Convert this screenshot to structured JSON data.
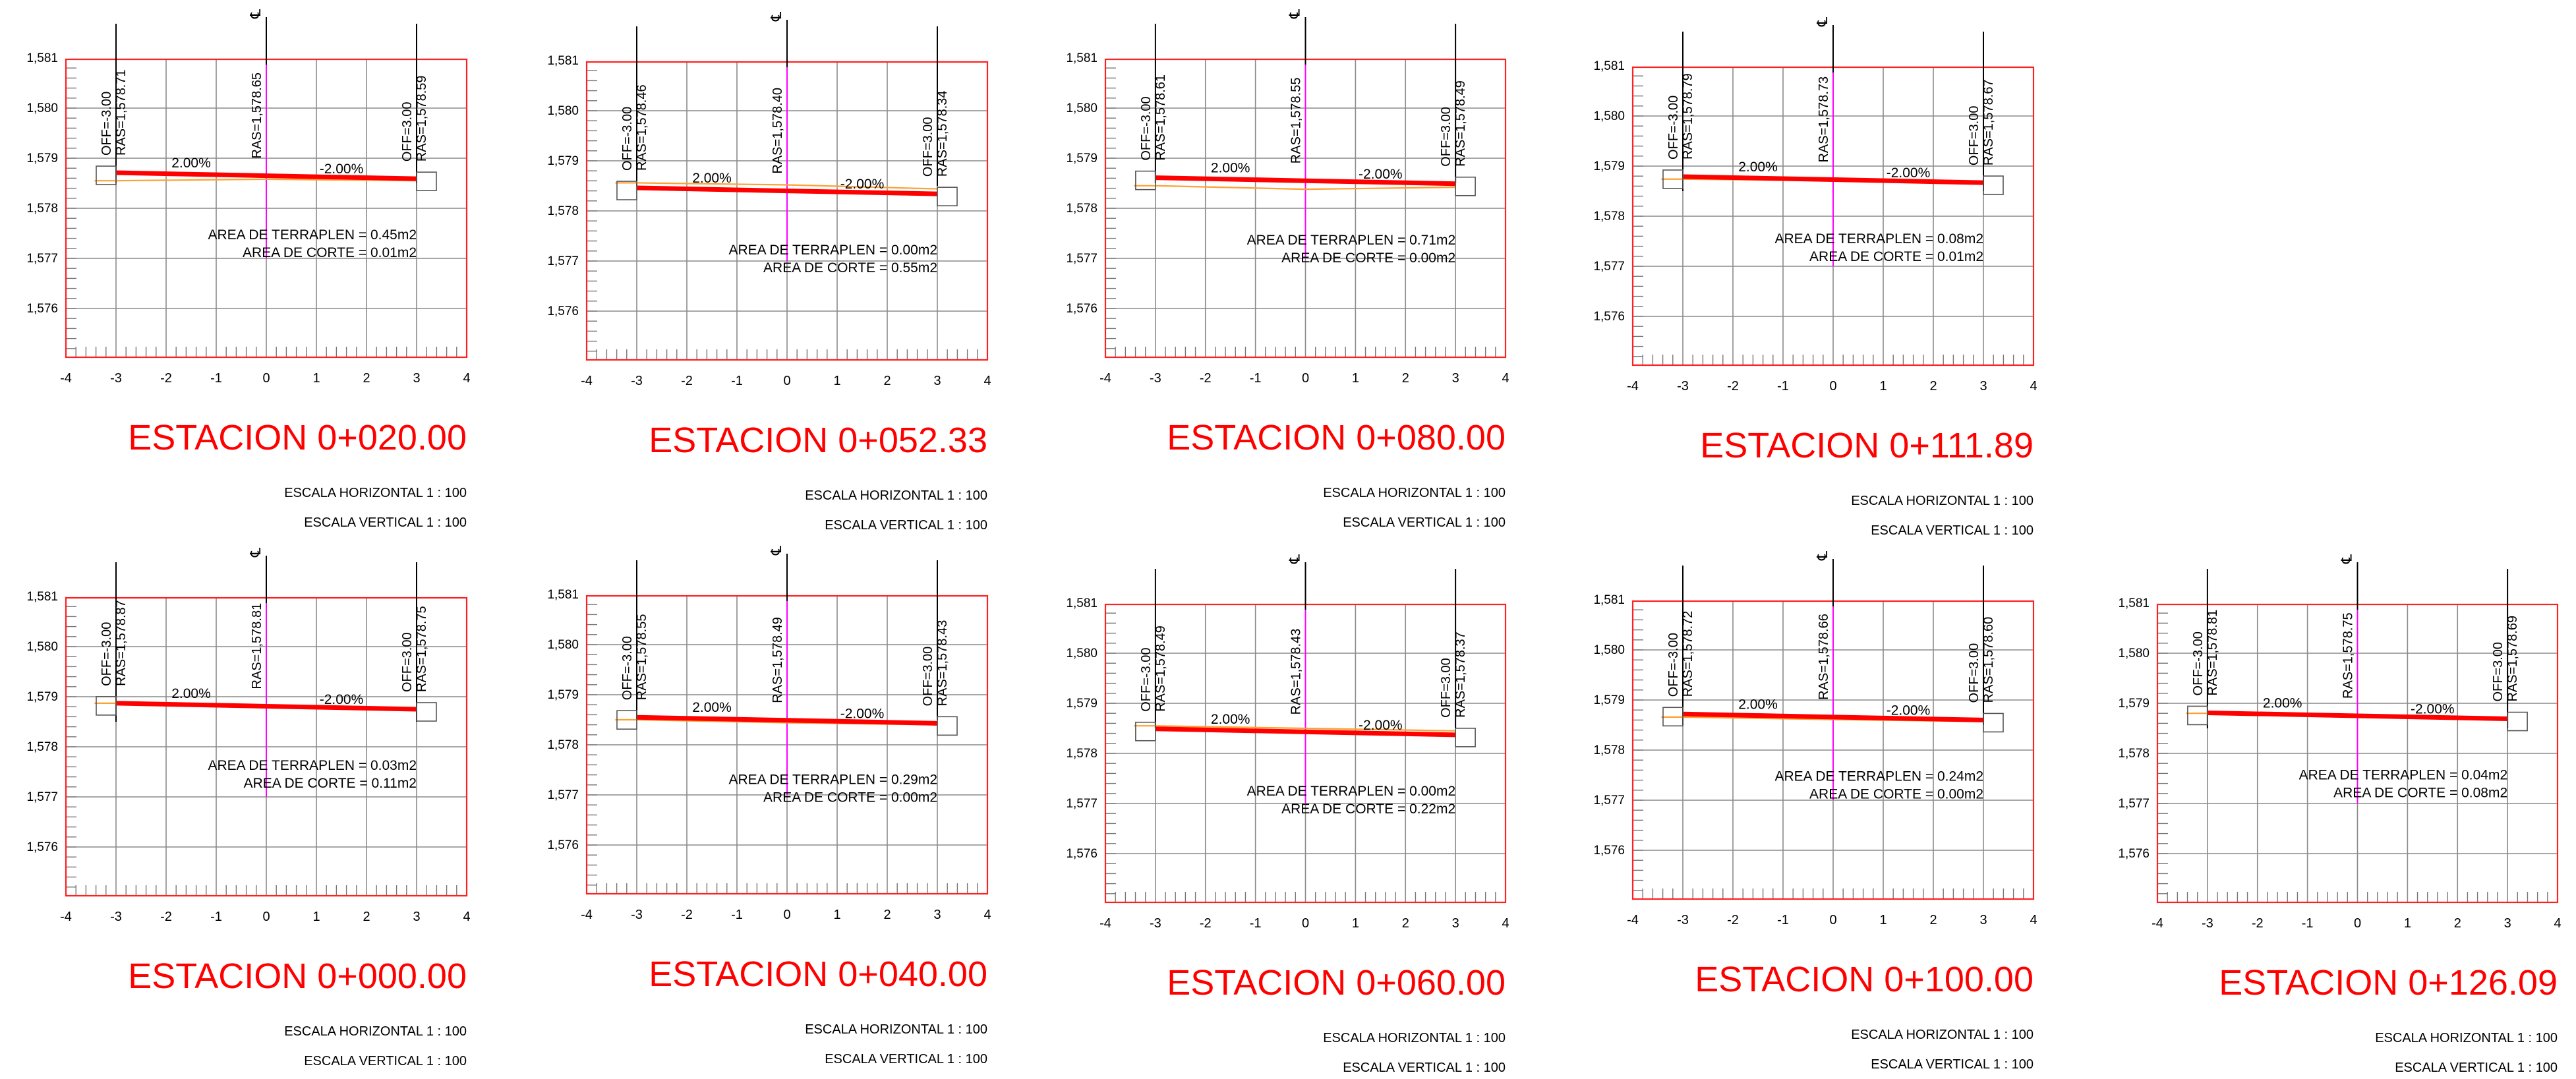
{
  "colors": {
    "frame": "#ff2020",
    "grid": "#8a8a8a",
    "ticks": "#777777",
    "text": "#000000",
    "rasante": "#ff0000",
    "terrain": "#ffa030",
    "centerline": "#ff00ff",
    "title": "#ff0000"
  },
  "icons": {
    "centerline_mark": "centerline-symbol-icon"
  },
  "sections": [
    {
      "id": "0+020",
      "station": "ESTACION 0+020.00",
      "scale_h": "ESCALA HORIZONTAL 1 : 100",
      "scale_v": "ESCALA VERTICAL 1 : 100",
      "y_ticks": [
        "1,581",
        "1,580",
        "1,579",
        "1,578",
        "1,577",
        "1,576"
      ],
      "x_ticks": [
        "-4",
        "-3",
        "-2",
        "-1",
        "0",
        "1",
        "2",
        "3",
        "4"
      ],
      "label_left": [
        "OFF=-3.00",
        "RAS=1,578.71"
      ],
      "label_center": "RAS=1,578.65",
      "label_right": [
        "OFF=3.00",
        "RAS=1,578.59"
      ],
      "slope_left": "2.00%",
      "slope_right": "-2.00%",
      "area_fill": "AREA DE TERRAPLEN = 0.45m2",
      "area_cut": "AREA DE CORTE = 0.01m2",
      "profile": {
        "offsets": [
          -3,
          0,
          3
        ],
        "rasante": [
          1578.71,
          1578.65,
          1578.59
        ],
        "terrain": [
          1578.55,
          1578.58,
          1578.55
        ]
      }
    },
    {
      "id": "0+052",
      "station": "ESTACION 0+052.33",
      "scale_h": "ESCALA HORIZONTAL 1 : 100",
      "scale_v": "ESCALA VERTICAL 1 : 100",
      "y_ticks": [
        "1,581",
        "1,580",
        "1,579",
        "1,578",
        "1,577",
        "1,576"
      ],
      "x_ticks": [
        "-4",
        "-3",
        "-2",
        "-1",
        "0",
        "1",
        "2",
        "3",
        "4"
      ],
      "label_left": [
        "OFF=-3.00",
        "RAS=1,578.46"
      ],
      "label_center": "RAS=1,578.40",
      "label_right": [
        "OFF=3.00",
        "RAS=1,578.34"
      ],
      "slope_left": "2.00%",
      "slope_right": "-2.00%",
      "area_fill": "AREA DE TERRAPLEN = 0.00m2",
      "area_cut": "AREA DE CORTE = 0.55m2",
      "profile": {
        "offsets": [
          -3,
          0,
          3
        ],
        "rasante": [
          1578.46,
          1578.4,
          1578.34
        ],
        "terrain": [
          1578.56,
          1578.52,
          1578.44
        ]
      }
    },
    {
      "id": "0+080",
      "station": "ESTACION 0+080.00",
      "scale_h": "ESCALA HORIZONTAL 1 : 100",
      "scale_v": "ESCALA VERTICAL 1 : 100",
      "y_ticks": [
        "1,581",
        "1,580",
        "1,579",
        "1,578",
        "1,577",
        "1,576"
      ],
      "x_ticks": [
        "-4",
        "-3",
        "-2",
        "-1",
        "0",
        "1",
        "2",
        "3",
        "4"
      ],
      "label_left": [
        "OFF=-3.00",
        "RAS=1,578.61"
      ],
      "label_center": "RAS=1,578.55",
      "label_right": [
        "OFF=3.00",
        "RAS=1,578.49"
      ],
      "slope_left": "2.00%",
      "slope_right": "-2.00%",
      "area_fill": "AREA DE TERRAPLEN = 0.71m2",
      "area_cut": "AREA DE CORTE = 0.00m2",
      "profile": {
        "offsets": [
          -3,
          0,
          3
        ],
        "rasante": [
          1578.61,
          1578.55,
          1578.49
        ],
        "terrain": [
          1578.45,
          1578.38,
          1578.42
        ]
      }
    },
    {
      "id": "0+111",
      "station": "ESTACION 0+111.89",
      "scale_h": "ESCALA HORIZONTAL 1 : 100",
      "scale_v": "ESCALA VERTICAL 1 : 100",
      "y_ticks": [
        "1,581",
        "1,580",
        "1,579",
        "1,578",
        "1,577",
        "1,576"
      ],
      "x_ticks": [
        "-4",
        "-3",
        "-2",
        "-1",
        "0",
        "1",
        "2",
        "3",
        "4"
      ],
      "label_left": [
        "OFF=-3.00",
        "RAS=1,578.79"
      ],
      "label_center": "RAS=1,578.73",
      "label_right": [
        "OFF=3.00",
        "RAS=1,578.67"
      ],
      "slope_left": "2.00%",
      "slope_right": "-2.00%",
      "area_fill": "AREA DE TERRAPLEN = 0.08m2",
      "area_cut": "AREA DE CORTE = 0.01m2",
      "profile": {
        "offsets": [
          -3,
          0,
          3
        ],
        "rasante": [
          1578.79,
          1578.73,
          1578.67
        ],
        "terrain": [
          1578.74,
          1578.71,
          1578.66
        ]
      }
    },
    {
      "id": "0+000",
      "station": "ESTACION 0+000.00",
      "scale_h": "ESCALA HORIZONTAL 1 : 100",
      "scale_v": "ESCALA VERTICAL 1 : 100",
      "y_ticks": [
        "1,581",
        "1,580",
        "1,579",
        "1,578",
        "1,577",
        "1,576"
      ],
      "x_ticks": [
        "-4",
        "-3",
        "-2",
        "-1",
        "0",
        "1",
        "2",
        "3",
        "4"
      ],
      "label_left": [
        "OFF=-3.00",
        "RAS=1,578.87"
      ],
      "label_center": "RAS=1,578.81",
      "label_right": [
        "OFF=3.00",
        "RAS=1,578.75"
      ],
      "slope_left": "2.00%",
      "slope_right": "-2.00%",
      "area_fill": "AREA DE TERRAPLEN = 0.03m2",
      "area_cut": "AREA DE CORTE = 0.11m2",
      "profile": {
        "offsets": [
          -3,
          0,
          3
        ],
        "rasante": [
          1578.87,
          1578.81,
          1578.75
        ],
        "terrain": [
          1578.87,
          1578.82,
          1578.78
        ]
      }
    },
    {
      "id": "0+040",
      "station": "ESTACION 0+040.00",
      "scale_h": "ESCALA HORIZONTAL 1 : 100",
      "scale_v": "ESCALA VERTICAL 1 : 100",
      "y_ticks": [
        "1,581",
        "1,580",
        "1,579",
        "1,578",
        "1,577",
        "1,576"
      ],
      "x_ticks": [
        "-4",
        "-3",
        "-2",
        "-1",
        "0",
        "1",
        "2",
        "3",
        "4"
      ],
      "label_left": [
        "OFF=-3.00",
        "RAS=1,578.55"
      ],
      "label_center": "RAS=1,578.49",
      "label_right": [
        "OFF=3.00",
        "RAS=1,578.43"
      ],
      "slope_left": "2.00%",
      "slope_right": "-2.00%",
      "area_fill": "AREA DE TERRAPLEN = 0.29m2",
      "area_cut": "AREA DE CORTE = 0.00m2",
      "profile": {
        "offsets": [
          -3,
          0,
          3
        ],
        "rasante": [
          1578.55,
          1578.49,
          1578.43
        ],
        "terrain": [
          1578.5,
          1578.44,
          1578.4
        ]
      }
    },
    {
      "id": "0+060",
      "station": "ESTACION 0+060.00",
      "scale_h": "ESCALA HORIZONTAL 1 : 100",
      "scale_v": "ESCALA VERTICAL 1 : 100",
      "y_ticks": [
        "1,581",
        "1,580",
        "1,579",
        "1,578",
        "1,577",
        "1,576"
      ],
      "x_ticks": [
        "-4",
        "-3",
        "-2",
        "-1",
        "0",
        "1",
        "2",
        "3",
        "4"
      ],
      "label_left": [
        "OFF=-3.00",
        "RAS=1,578.49"
      ],
      "label_center": "RAS=1,578.43",
      "label_right": [
        "OFF=3.00",
        "RAS=1,578.37"
      ],
      "slope_left": "2.00%",
      "slope_right": "-2.00%",
      "area_fill": "AREA DE TERRAPLEN = 0.00m2",
      "area_cut": "AREA DE CORTE = 0.22m2",
      "profile": {
        "offsets": [
          -3,
          0,
          3
        ],
        "rasante": [
          1578.49,
          1578.43,
          1578.37
        ],
        "terrain": [
          1578.55,
          1578.5,
          1578.45
        ]
      }
    },
    {
      "id": "0+100",
      "station": "ESTACION 0+100.00",
      "scale_h": "ESCALA HORIZONTAL 1 : 100",
      "scale_v": "ESCALA VERTICAL 1 : 100",
      "y_ticks": [
        "1,581",
        "1,580",
        "1,579",
        "1,578",
        "1,577",
        "1,576"
      ],
      "x_ticks": [
        "-4",
        "-3",
        "-2",
        "-1",
        "0",
        "1",
        "2",
        "3",
        "4"
      ],
      "label_left": [
        "OFF=-3.00",
        "RAS=1,578.72"
      ],
      "label_center": "RAS=1,578.66",
      "label_right": [
        "OFF=3.00",
        "RAS=1,578.60"
      ],
      "slope_left": "2.00%",
      "slope_right": "-2.00%",
      "area_fill": "AREA DE TERRAPLEN = 0.24m2",
      "area_cut": "AREA DE CORTE = 0.00m2",
      "profile": {
        "offsets": [
          -3,
          0,
          3
        ],
        "rasante": [
          1578.72,
          1578.66,
          1578.6
        ],
        "terrain": [
          1578.66,
          1578.61,
          1578.57
        ]
      }
    },
    {
      "id": "0+126",
      "station": "ESTACION 0+126.09",
      "scale_h": "ESCALA HORIZONTAL 1 : 100",
      "scale_v": "ESCALA VERTICAL 1 : 100",
      "y_ticks": [
        "1,581",
        "1,580",
        "1,579",
        "1,578",
        "1,577",
        "1,576"
      ],
      "x_ticks": [
        "-4",
        "-3",
        "-2",
        "-1",
        "0",
        "1",
        "2",
        "3",
        "4"
      ],
      "label_left": [
        "OFF=-3.00",
        "RAS=1,578.81"
      ],
      "label_center": "RAS=1,578.75",
      "label_right": [
        "OFF=3.00",
        "RAS=1,578.69"
      ],
      "slope_left": "2.00%",
      "slope_right": "-2.00%",
      "area_fill": "AREA DE TERRAPLEN = 0.04m2",
      "area_cut": "AREA DE CORTE = 0.08m2",
      "profile": {
        "offsets": [
          -3,
          0,
          3
        ],
        "rasante": [
          1578.81,
          1578.75,
          1578.69
        ],
        "terrain": [
          1578.8,
          1578.76,
          1578.7
        ]
      }
    }
  ]
}
